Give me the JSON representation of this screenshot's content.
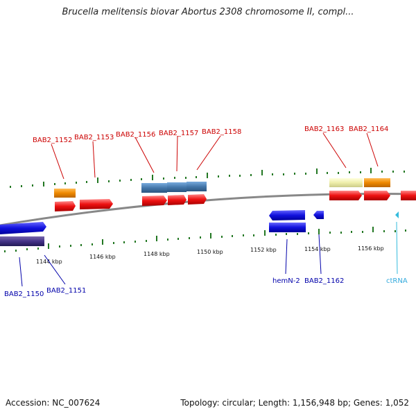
{
  "title": "Brucella melitensis biovar Abortus 2308 chromosome II, compl...",
  "footer": {
    "accession": "Accession: NC_007624",
    "summary": "Topology: circular; Length: 1,156,948 bp; Genes: 1,052"
  },
  "colors": {
    "cds_plus": "#ee1111",
    "cds_minus": "#1111dd",
    "gene_upper_plus": "#4477aa",
    "gene_orange": "#ee8800",
    "gene_pale": "#eeeeaa",
    "gene_dark_minus": "#443388",
    "rna": "#33bbdd",
    "tick_green": "#227722",
    "backbone": "#888888"
  },
  "ruler_labels": [
    "1144 kbp",
    "1146 kbp",
    "1148 kbp",
    "1150 kbp",
    "1152 kbp",
    "1154 kbp",
    "1156 kbp"
  ],
  "gene_labels_plus": [
    "BAB2_1152",
    "BAB2_1153",
    "BAB2_1156",
    "BAB2_1157",
    "BAB2_1158",
    "BAB2_1163",
    "BAB2_1164"
  ],
  "gene_labels_minus": [
    "BAB2_1150",
    "BAB2_1151",
    "hemN-2",
    "BAB2_1162"
  ],
  "gene_labels_rna": [
    "ctRNA"
  ]
}
